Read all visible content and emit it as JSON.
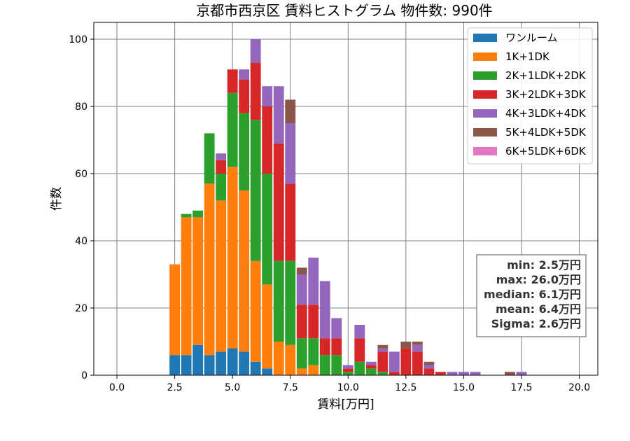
{
  "chart_data": {
    "type": "bar",
    "stacked": true,
    "title": "京都市西京区 賃料ヒストグラム 物件数: 990件",
    "xlabel": "賃料[万円]",
    "ylabel": "件数",
    "xlim": [
      -1.0,
      20.8
    ],
    "ylim": [
      0,
      105
    ],
    "xticks": [
      0.0,
      2.5,
      5.0,
      7.5,
      10.0,
      12.5,
      15.0,
      17.5,
      20.0
    ],
    "xtick_labels": [
      "0.0",
      "2.5",
      "5.0",
      "7.5",
      "10.0",
      "12.5",
      "15.0",
      "17.5",
      "20.0"
    ],
    "yticks": [
      0,
      20,
      40,
      60,
      80,
      100
    ],
    "ytick_labels": [
      "0",
      "20",
      "40",
      "60",
      "80",
      "100"
    ],
    "grid": true,
    "legend_position": "top-right",
    "bin_width": 0.5,
    "bin_centers": [
      2.5,
      3.0,
      3.5,
      4.0,
      4.5,
      5.0,
      5.5,
      6.0,
      6.5,
      7.0,
      7.5,
      8.0,
      8.5,
      9.0,
      9.5,
      10.0,
      10.5,
      11.0,
      11.5,
      12.0,
      12.5,
      13.0,
      13.5,
      14.0,
      14.5,
      15.0,
      15.5,
      16.0,
      16.5,
      17.0,
      17.5,
      18.0
    ],
    "series": [
      {
        "name": "ワンルーム",
        "color": "#1f77b4",
        "values": [
          6,
          6,
          9,
          6,
          7,
          8,
          7,
          4,
          2,
          0,
          0,
          0,
          0,
          0,
          0,
          0,
          0,
          0,
          0,
          0,
          0,
          0,
          0,
          0,
          0,
          0,
          0,
          0,
          0,
          0,
          0,
          0
        ]
      },
      {
        "name": "1K+1DK",
        "color": "#ff7f0e",
        "values": [
          27,
          41,
          38,
          51,
          45,
          54,
          48,
          30,
          25,
          10,
          9,
          2,
          3,
          0,
          0,
          0,
          0,
          0,
          0,
          0,
          0,
          0,
          0,
          0,
          0,
          0,
          0,
          0,
          0,
          0,
          0,
          0
        ]
      },
      {
        "name": "2K+1LDK+2DK",
        "color": "#2ca02c",
        "values": [
          0,
          1,
          2,
          15,
          8,
          22,
          23,
          42,
          33,
          24,
          25,
          9,
          8,
          6,
          6,
          1,
          4,
          2,
          1,
          0,
          0,
          0,
          0,
          0,
          0,
          0,
          0,
          0,
          0,
          0,
          0,
          0
        ]
      },
      {
        "name": "3K+2LDK+3DK",
        "color": "#d62728",
        "values": [
          0,
          0,
          0,
          0,
          4,
          7,
          10,
          17,
          20,
          35,
          23,
          10,
          10,
          5,
          5,
          1,
          7,
          1,
          6,
          1,
          8,
          7,
          2,
          1,
          0,
          0,
          0,
          0,
          0,
          0,
          0,
          0
        ]
      },
      {
        "name": "4K+3LDK+4DK",
        "color": "#9467bd",
        "values": [
          0,
          0,
          0,
          0,
          2,
          0,
          3,
          7,
          6,
          17,
          18,
          9,
          14,
          17,
          6,
          1,
          4,
          1,
          1,
          6,
          0,
          2,
          1,
          0,
          1,
          1,
          1,
          0,
          0,
          0,
          1,
          0
        ]
      },
      {
        "name": "5K+4LDK+5DK",
        "color": "#8c564b",
        "values": [
          0,
          0,
          0,
          0,
          0,
          0,
          0,
          0,
          0,
          0,
          7,
          2,
          0,
          0,
          0,
          0,
          0,
          0,
          1,
          0,
          2,
          1,
          1,
          0,
          0,
          0,
          0,
          0,
          0,
          1,
          0,
          0
        ]
      },
      {
        "name": "6K+5LDK+6DK",
        "color": "#e377c2",
        "values": [
          0,
          0,
          0,
          0,
          0,
          0,
          0,
          0,
          0,
          0,
          0,
          0,
          0,
          0,
          0,
          0,
          0,
          0,
          0,
          0,
          0,
          0,
          0,
          0,
          0,
          0,
          0,
          0,
          0,
          0,
          0,
          0
        ]
      }
    ],
    "stats": [
      "min: 2.5万円",
      "max: 26.0万円",
      "median: 6.1万円",
      "mean: 6.4万円",
      "Sigma: 2.6万円"
    ]
  }
}
